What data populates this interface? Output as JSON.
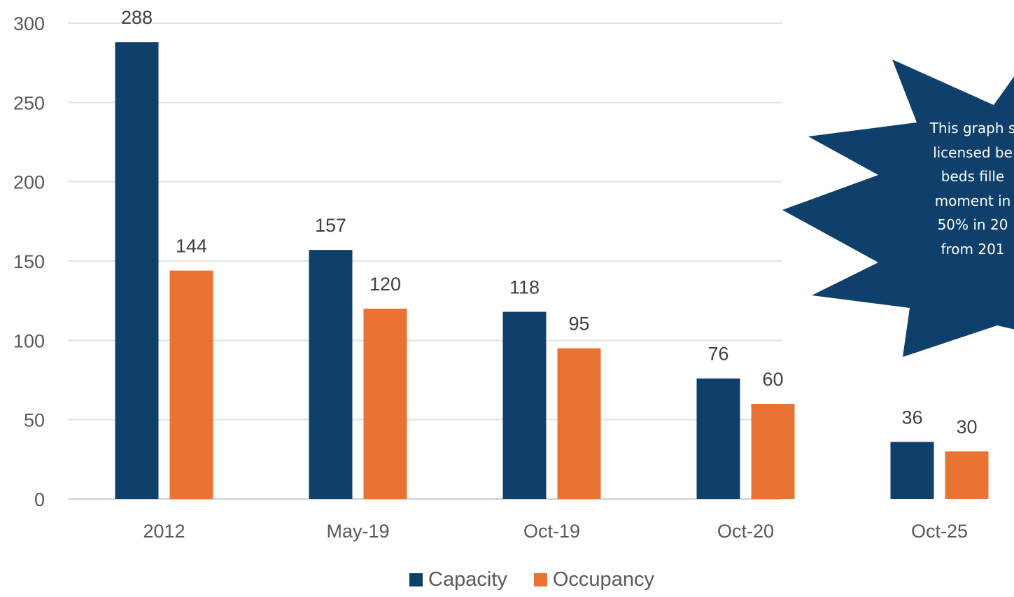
{
  "chart_data": {
    "type": "bar",
    "categories": [
      "2012",
      "May-19",
      "Oct-19",
      "Oct-20",
      "Oct-25"
    ],
    "series": [
      {
        "name": "Capacity",
        "values": [
          288,
          157,
          118,
          76,
          36
        ],
        "color": "#0f3f6b"
      },
      {
        "name": "Occupancy",
        "values": [
          144,
          120,
          95,
          60,
          30
        ],
        "color": "#e97332"
      }
    ],
    "yticks": [
      0,
      50,
      100,
      150,
      200,
      250,
      300
    ],
    "ylim": [
      0,
      300
    ],
    "grid": true,
    "legend": "bottom",
    "annotation": {
      "lines": [
        "This graph s",
        "licensed be",
        "beds fille",
        "moment in",
        "50% in 20",
        "from 201"
      ],
      "color": "#0f3f6b"
    }
  }
}
